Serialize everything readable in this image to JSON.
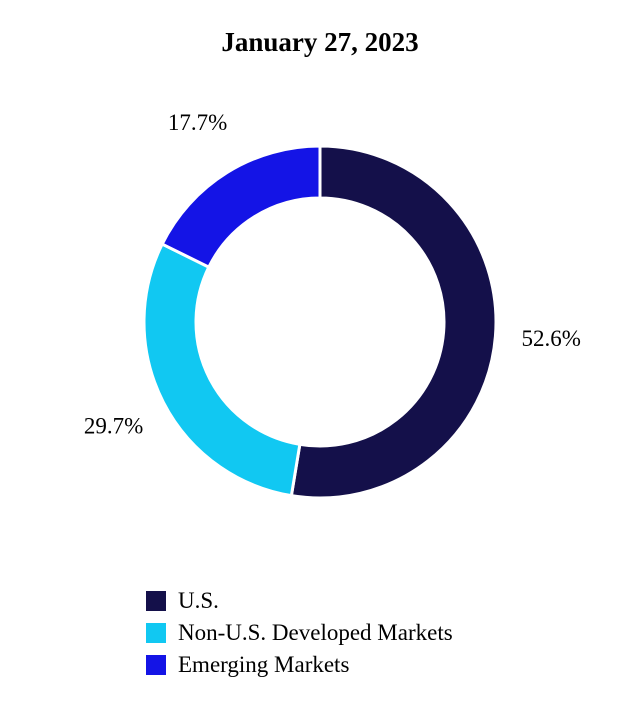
{
  "chart_data": {
    "type": "pie",
    "title": "January 27, 2023",
    "categories": [
      "U.S.",
      "Non-U.S. Developed Markets",
      "Emerging Markets"
    ],
    "values": [
      52.6,
      29.7,
      17.7
    ],
    "labels": [
      "52.6%",
      "29.7%",
      "17.7%"
    ],
    "colors": [
      "#14104a",
      "#11c8f2",
      "#1414e6"
    ],
    "donut": true,
    "legend_position": "bottom-left"
  }
}
